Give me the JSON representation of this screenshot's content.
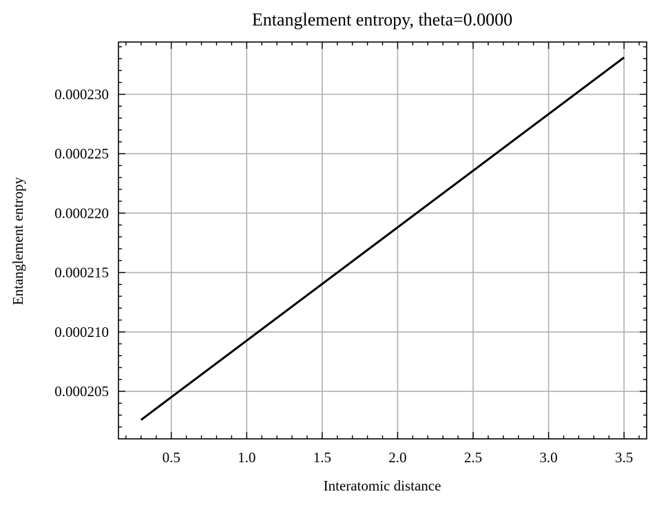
{
  "chart_data": {
    "type": "line",
    "title": "Entanglement entropy, theta=0.0000",
    "xlabel": "Interatomic distance",
    "ylabel": "Entanglement entropy",
    "xlim": [
      0.15,
      3.65
    ],
    "ylim": [
      0.000201,
      0.0002344
    ],
    "xticks": [
      0.5,
      1.0,
      1.5,
      2.0,
      2.5,
      3.0,
      3.5
    ],
    "xtick_labels": [
      "0.5",
      "1.0",
      "1.5",
      "2.0",
      "2.5",
      "3.0",
      "3.5"
    ],
    "yticks": [
      0.000205,
      0.00021,
      0.000215,
      0.00022,
      0.000225,
      0.00023
    ],
    "ytick_labels": [
      "0.000205",
      "0.000210",
      "0.000215",
      "0.000220",
      "0.000225",
      "0.000230"
    ],
    "grid": true,
    "series": [
      {
        "color": "#000000",
        "x": [
          0.3,
          3.5
        ],
        "y": [
          0.0002026,
          0.0002331
        ]
      }
    ]
  }
}
